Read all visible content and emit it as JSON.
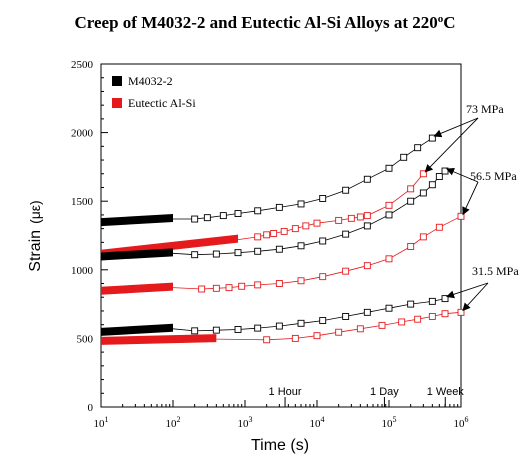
{
  "chart_data": {
    "type": "scatter",
    "title": "Creep of M4032-2 and Eutectic Al-Si Alloys at 220",
    "title_sup": "o",
    "title_end": "C",
    "xlabel": "Time (s)",
    "ylabel_main": "Strain",
    "ylabel_unit": "(με)",
    "x_scale": "log",
    "xlim": [
      10,
      1000000
    ],
    "ylim": [
      0,
      2500
    ],
    "x_ticks": [
      {
        "value": 10,
        "base": "10",
        "exp": "1"
      },
      {
        "value": 100,
        "base": "10",
        "exp": "2"
      },
      {
        "value": 1000,
        "base": "10",
        "exp": "3"
      },
      {
        "value": 10000,
        "base": "10",
        "exp": "4"
      },
      {
        "value": 100000,
        "base": "10",
        "exp": "5"
      },
      {
        "value": 1000000,
        "base": "10",
        "exp": "6"
      }
    ],
    "y_ticks": [
      "0",
      "500",
      "1000",
      "1500",
      "2000",
      "2500"
    ],
    "grid": false,
    "legend_position": "top-left",
    "legend": [
      {
        "label": "M4032-2",
        "color": "#000000"
      },
      {
        "label": "Eutectic Al-Si",
        "color": "#e41a1c"
      }
    ],
    "time_markers": [
      {
        "label": "1 Hour",
        "x": 3600
      },
      {
        "label": "1 Day",
        "x": 86400
      },
      {
        "label": "1 Week",
        "x": 604800
      }
    ],
    "stress_labels": [
      {
        "label": "73 MPa",
        "anchor": [
          1000000,
          2150
        ],
        "targets": [
          [
            400000,
            1960
          ],
          [
            300000,
            1700
          ]
        ]
      },
      {
        "label": "56.5 MPa",
        "anchor": [
          1000000,
          1700
        ],
        "targets": [
          [
            600000,
            1720
          ],
          [
            1000000,
            1390
          ]
        ]
      },
      {
        "label": "31.5 MPa",
        "anchor": [
          1000000,
          1000
        ],
        "targets": [
          [
            600000,
            790
          ],
          [
            1000000,
            690
          ]
        ]
      }
    ],
    "series": [
      {
        "name": "M4032-2",
        "stress": "73 MPa",
        "color": "#000000",
        "dense_range": [
          10,
          100
        ],
        "dense_y": [
          1340,
          1370
        ],
        "points": [
          [
            200,
            1370
          ],
          [
            300,
            1380
          ],
          [
            500,
            1395
          ],
          [
            800,
            1410
          ],
          [
            1500,
            1430
          ],
          [
            3000,
            1455
          ],
          [
            6000,
            1480
          ],
          [
            12000,
            1520
          ],
          [
            25000,
            1580
          ],
          [
            50000,
            1660
          ],
          [
            100000,
            1740
          ],
          [
            160000,
            1820
          ],
          [
            250000,
            1890
          ],
          [
            400000,
            1960
          ]
        ]
      },
      {
        "name": "Eutectic Al-Si",
        "stress": "73 MPa",
        "color": "#e41a1c",
        "dense_range": [
          10,
          800
        ],
        "dense_y": [
          1110,
          1220
        ],
        "points": [
          [
            1500,
            1240
          ],
          [
            2000,
            1255
          ],
          [
            2500,
            1265
          ],
          [
            3500,
            1280
          ],
          [
            5000,
            1300
          ],
          [
            7000,
            1320
          ],
          [
            10000,
            1340
          ],
          [
            20000,
            1360
          ],
          [
            30000,
            1375
          ],
          [
            40000,
            1385
          ],
          [
            50000,
            1395
          ],
          [
            100000,
            1470
          ],
          [
            200000,
            1590
          ],
          [
            300000,
            1700
          ]
        ]
      },
      {
        "name": "M4032-2",
        "stress": "56.5 MPa",
        "color": "#000000",
        "dense_range": [
          10,
          100
        ],
        "dense_y": [
          1090,
          1120
        ],
        "points": [
          [
            200,
            1110
          ],
          [
            400,
            1115
          ],
          [
            800,
            1125
          ],
          [
            1500,
            1135
          ],
          [
            3000,
            1150
          ],
          [
            6000,
            1175
          ],
          [
            12000,
            1210
          ],
          [
            25000,
            1260
          ],
          [
            50000,
            1320
          ],
          [
            100000,
            1400
          ],
          [
            200000,
            1500
          ],
          [
            300000,
            1560
          ],
          [
            400000,
            1620
          ],
          [
            500000,
            1680
          ],
          [
            600000,
            1720
          ]
        ]
      },
      {
        "name": "Eutectic Al-Si",
        "stress": "56.5 MPa",
        "color": "#e41a1c",
        "dense_range": [
          10,
          100
        ],
        "dense_y": [
          840,
          870
        ],
        "points": [
          [
            250,
            860
          ],
          [
            400,
            865
          ],
          [
            600,
            870
          ],
          [
            900,
            880
          ],
          [
            1500,
            890
          ],
          [
            3000,
            900
          ],
          [
            6000,
            920
          ],
          [
            12000,
            950
          ],
          [
            25000,
            990
          ],
          [
            50000,
            1030
          ],
          [
            100000,
            1080
          ],
          [
            200000,
            1170
          ],
          [
            300000,
            1240
          ],
          [
            500000,
            1310
          ],
          [
            1000000,
            1390
          ]
        ]
      },
      {
        "name": "M4032-2",
        "stress": "31.5 MPa",
        "color": "#000000",
        "dense_range": [
          10,
          100
        ],
        "dense_y": [
          540,
          570
        ],
        "points": [
          [
            200,
            555
          ],
          [
            400,
            560
          ],
          [
            800,
            565
          ],
          [
            1500,
            575
          ],
          [
            3000,
            590
          ],
          [
            6000,
            610
          ],
          [
            12000,
            630
          ],
          [
            25000,
            660
          ],
          [
            50000,
            690
          ],
          [
            100000,
            720
          ],
          [
            200000,
            750
          ],
          [
            400000,
            770
          ],
          [
            600000,
            790
          ]
        ]
      },
      {
        "name": "Eutectic Al-Si",
        "stress": "31.5 MPa",
        "color": "#e41a1c",
        "dense_range": [
          10,
          400
        ],
        "dense_y": [
          475,
          495
        ],
        "points": [
          [
            2000,
            490
          ],
          [
            5000,
            500
          ],
          [
            10000,
            520
          ],
          [
            20000,
            545
          ],
          [
            40000,
            570
          ],
          [
            80000,
            595
          ],
          [
            150000,
            620
          ],
          [
            250000,
            640
          ],
          [
            400000,
            660
          ],
          [
            600000,
            680
          ],
          [
            1000000,
            690
          ]
        ]
      }
    ]
  }
}
